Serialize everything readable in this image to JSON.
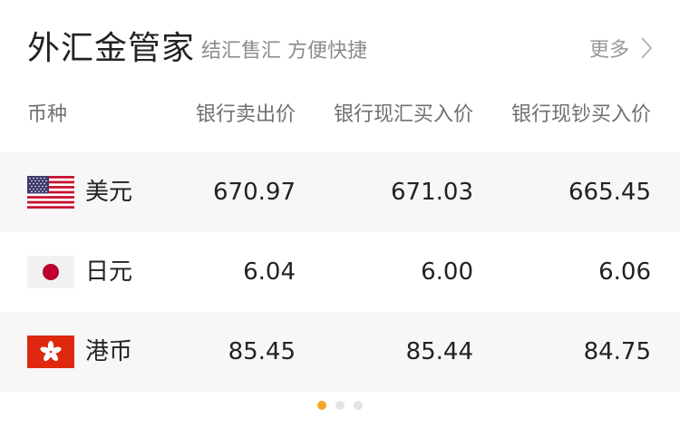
{
  "header": {
    "title": "外汇金管家",
    "subtitle": "结汇售汇 方便快捷",
    "more_label": "更多"
  },
  "columns": {
    "currency": "币种",
    "bank_sell": "银行卖出价",
    "bank_buy_exchange": "银行现汇买入价",
    "bank_buy_cash": "银行现钞买入价"
  },
  "rows": [
    {
      "flag": "us-flag-icon",
      "name": "美元",
      "bank_sell": "670.97",
      "bank_buy_exchange": "671.03",
      "bank_buy_cash": "665.45"
    },
    {
      "flag": "jp-flag-icon",
      "name": "日元",
      "bank_sell": "6.04",
      "bank_buy_exchange": "6.00",
      "bank_buy_cash": "6.06"
    },
    {
      "flag": "hk-flag-icon",
      "name": "港币",
      "bank_sell": "85.45",
      "bank_buy_exchange": "85.44",
      "bank_buy_cash": "84.75"
    }
  ],
  "pagination": {
    "count": 3,
    "active_index": 0
  },
  "colors": {
    "accent": "#f5a623",
    "row_shade": "#f7f7f7",
    "text_primary": "#222222",
    "text_secondary": "#8c8c8c",
    "us_red": "#c8102e",
    "us_blue": "#3c3b6e",
    "jp_red": "#bc002d",
    "hk_red": "#de2910"
  }
}
